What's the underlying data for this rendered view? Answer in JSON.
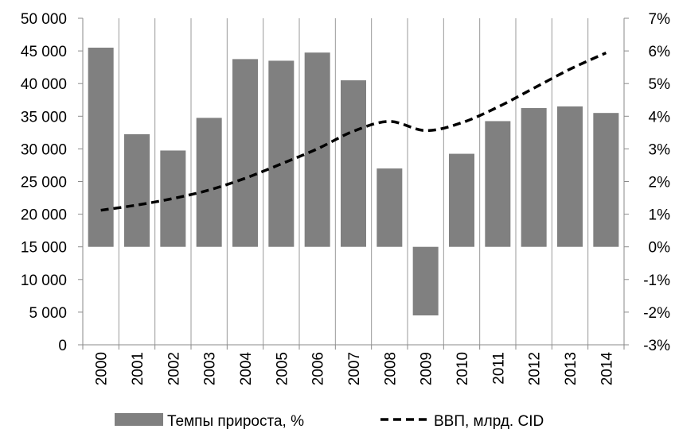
{
  "chart_data": {
    "type": "bar",
    "categories": [
      "2000",
      "2001",
      "2002",
      "2003",
      "2004",
      "2005",
      "2006",
      "2007",
      "2008",
      "2009",
      "2010",
      "2011",
      "2012",
      "2013",
      "2014"
    ],
    "series": [
      {
        "name": "Темпы прироста, %",
        "type": "bar",
        "axis": "right",
        "color": "#808080",
        "values": [
          6.1,
          3.45,
          2.95,
          3.95,
          5.75,
          5.7,
          5.95,
          5.1,
          2.4,
          -2.1,
          2.85,
          3.85,
          4.25,
          4.3,
          4.1
        ]
      },
      {
        "name": "ВВП, млрд. CID",
        "type": "line",
        "axis": "left",
        "style": "dashed",
        "color": "#000000",
        "values": [
          20600,
          21400,
          22400,
          23700,
          25500,
          27700,
          30000,
          32700,
          34200,
          32800,
          34000,
          36400,
          39300,
          42200,
          44700
        ]
      }
    ],
    "y_left": {
      "ylim": [
        0,
        50000
      ],
      "ticks": [
        "0",
        "5 000",
        "10 000",
        "15 000",
        "20 000",
        "25 000",
        "30 000",
        "35 000",
        "40 000",
        "45 000",
        "50 000"
      ]
    },
    "y_right": {
      "ylim": [
        -3,
        7
      ],
      "ticks": [
        "-3%",
        "-2%",
        "-1%",
        "0%",
        "1%",
        "2%",
        "3%",
        "4%",
        "5%",
        "6%",
        "7%"
      ]
    },
    "grid": "vertical",
    "legend": "bottom"
  }
}
